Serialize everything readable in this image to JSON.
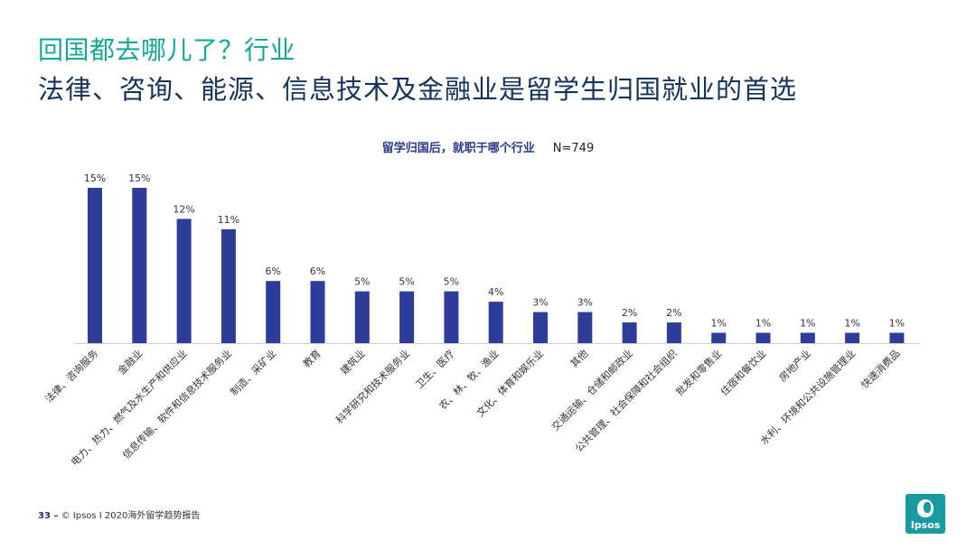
{
  "header": {
    "title": "回国都去哪儿了？行业",
    "subtitle": "法律、咨询、能源、信息技术及金融业是留学生归国就业的首选"
  },
  "chart_data": {
    "type": "bar",
    "title": "留学归国后，就职于哪个行业",
    "sample_size": "N=749",
    "categories": [
      "法律、咨询服务",
      "金融业",
      "电力、热力、燃气及水生产和供应业",
      "信息传输、软件和信息技术服务业",
      "制造、采矿业",
      "教育",
      "建筑业",
      "科学研究和技术服务业",
      "卫生、医疗",
      "农、林、牧、渔业",
      "文化、体育和娱乐业",
      "其他",
      "交通运输、仓储和邮政业",
      "公共管理、社会保障和社会组织",
      "批发和零售业",
      "住宿和餐饮业",
      "房地产业",
      "水利、环境和公共设施管理业",
      "快速消费品"
    ],
    "values": [
      15,
      15,
      12,
      11,
      6,
      6,
      5,
      5,
      5,
      4,
      3,
      3,
      2,
      2,
      1,
      1,
      1,
      1,
      1
    ],
    "value_labels": [
      "15%",
      "15%",
      "12%",
      "11%",
      "6%",
      "6%",
      "5%",
      "5%",
      "5%",
      "4%",
      "3%",
      "3%",
      "2%",
      "2%",
      "1%",
      "1%",
      "1%",
      "1%",
      "1%"
    ],
    "ylim": [
      0,
      15
    ],
    "bar_color": "#2e3d99",
    "grid": false
  },
  "footer": {
    "page_number": "33 –",
    "source": "© Ipsos I 2020海外留学趋势报告"
  },
  "logo": {
    "text": "Ipsos",
    "color": "#1a9aa0"
  }
}
